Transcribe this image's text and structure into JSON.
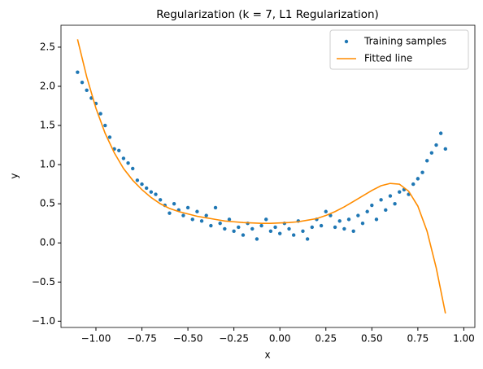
{
  "chart_data": {
    "type": "scatter+line",
    "title": "Regularization (k = 7, L1 Regularization)",
    "xlabel": "x",
    "ylabel": "y",
    "xlim": [
      -1.19,
      1.06
    ],
    "ylim": [
      -1.08,
      2.78
    ],
    "xticks": [
      {
        "value": -1,
        "label": "−1.00"
      },
      {
        "value": -0.75,
        "label": "−0.75"
      },
      {
        "value": -0.5,
        "label": "−0.50"
      },
      {
        "value": -0.25,
        "label": "−0.25"
      },
      {
        "value": 0,
        "label": "0.00"
      },
      {
        "value": 0.25,
        "label": "0.25"
      },
      {
        "value": 0.5,
        "label": "0.50"
      },
      {
        "value": 0.75,
        "label": "0.75"
      },
      {
        "value": 1,
        "label": "1.00"
      }
    ],
    "yticks": [
      {
        "value": -1,
        "label": "−1.0"
      },
      {
        "value": -0.5,
        "label": "−0.5"
      },
      {
        "value": 0,
        "label": "0.0"
      },
      {
        "value": 0.5,
        "label": "0.5"
      },
      {
        "value": 1,
        "label": "1.0"
      },
      {
        "value": 1.5,
        "label": "1.5"
      },
      {
        "value": 2,
        "label": "2.0"
      },
      {
        "value": 2.5,
        "label": "2.5"
      }
    ],
    "legend": "upper right",
    "series": [
      {
        "name": "Training samples",
        "kind": "scatter",
        "color": "#1f77b4",
        "x": [
          -1.1,
          -1.075,
          -1.05,
          -1.025,
          -1.0,
          -0.975,
          -0.95,
          -0.925,
          -0.9,
          -0.875,
          -0.85,
          -0.825,
          -0.8,
          -0.775,
          -0.75,
          -0.725,
          -0.7,
          -0.675,
          -0.65,
          -0.625,
          -0.6,
          -0.575,
          -0.55,
          -0.525,
          -0.5,
          -0.475,
          -0.45,
          -0.425,
          -0.4,
          -0.375,
          -0.35,
          -0.325,
          -0.3,
          -0.275,
          -0.25,
          -0.225,
          -0.2,
          -0.175,
          -0.15,
          -0.125,
          -0.1,
          -0.075,
          -0.05,
          -0.025,
          0.0,
          0.025,
          0.05,
          0.075,
          0.1,
          0.125,
          0.15,
          0.175,
          0.2,
          0.225,
          0.25,
          0.275,
          0.3,
          0.325,
          0.35,
          0.375,
          0.4,
          0.425,
          0.45,
          0.475,
          0.5,
          0.525,
          0.55,
          0.575,
          0.6,
          0.625,
          0.65,
          0.675,
          0.7,
          0.725,
          0.75,
          0.775,
          0.8,
          0.825,
          0.85,
          0.875,
          0.9
        ],
        "values": [
          2.18,
          2.05,
          1.95,
          1.85,
          1.78,
          1.65,
          1.5,
          1.35,
          1.2,
          1.18,
          1.08,
          1.02,
          0.95,
          0.8,
          0.75,
          0.7,
          0.65,
          0.62,
          0.55,
          0.48,
          0.38,
          0.5,
          0.42,
          0.35,
          0.45,
          0.3,
          0.4,
          0.28,
          0.35,
          0.22,
          0.45,
          0.25,
          0.18,
          0.3,
          0.15,
          0.2,
          0.1,
          0.25,
          0.18,
          0.05,
          0.22,
          0.3,
          0.15,
          0.2,
          0.12,
          0.25,
          0.18,
          0.1,
          0.28,
          0.15,
          0.05,
          0.2,
          0.3,
          0.22,
          0.4,
          0.35,
          0.2,
          0.28,
          0.18,
          0.3,
          0.15,
          0.35,
          0.25,
          0.4,
          0.48,
          0.3,
          0.55,
          0.42,
          0.6,
          0.5,
          0.65,
          0.68,
          0.62,
          0.75,
          0.82,
          0.9,
          1.05,
          1.15,
          1.25,
          1.4,
          1.2
        ]
      },
      {
        "name": "Fitted line",
        "kind": "line",
        "color": "#ff8c00",
        "x": [
          -1.1,
          -1.05,
          -1.0,
          -0.95,
          -0.9,
          -0.85,
          -0.8,
          -0.75,
          -0.7,
          -0.65,
          -0.6,
          -0.55,
          -0.5,
          -0.45,
          -0.4,
          -0.35,
          -0.3,
          -0.25,
          -0.2,
          -0.15,
          -0.1,
          -0.05,
          0.0,
          0.05,
          0.1,
          0.15,
          0.2,
          0.25,
          0.3,
          0.35,
          0.4,
          0.45,
          0.5,
          0.55,
          0.6,
          0.65,
          0.7,
          0.75,
          0.8,
          0.85,
          0.9
        ],
        "values": [
          2.6,
          2.12,
          1.72,
          1.4,
          1.15,
          0.95,
          0.8,
          0.68,
          0.58,
          0.5,
          0.44,
          0.4,
          0.37,
          0.34,
          0.32,
          0.3,
          0.28,
          0.27,
          0.26,
          0.255,
          0.25,
          0.25,
          0.255,
          0.26,
          0.27,
          0.29,
          0.31,
          0.35,
          0.4,
          0.46,
          0.53,
          0.6,
          0.67,
          0.73,
          0.76,
          0.75,
          0.66,
          0.47,
          0.15,
          -0.32,
          -0.9
        ]
      }
    ]
  }
}
